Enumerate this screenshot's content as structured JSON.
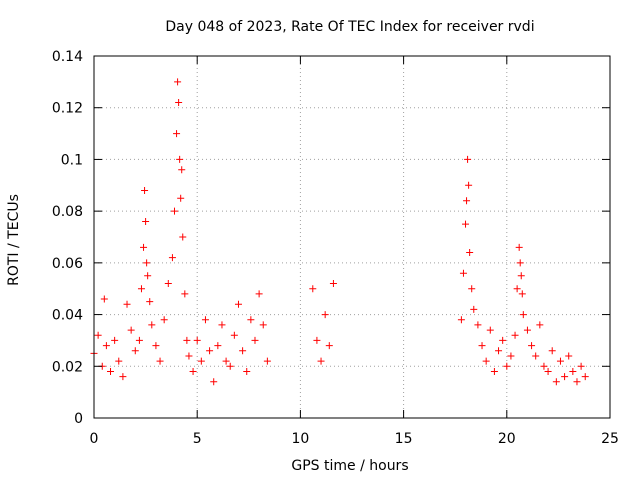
{
  "chart_data": {
    "type": "scatter",
    "title": "Day 048 of 2023, Rate Of TEC Index for receiver rvdi",
    "xlabel": "GPS time / hours",
    "ylabel": "ROTI / TECUs",
    "xlim": [
      0,
      25
    ],
    "ylim": [
      0,
      0.14
    ],
    "xticks": [
      0,
      5,
      10,
      15,
      20,
      25
    ],
    "xtick_labels": [
      "0",
      "5",
      "10",
      "15",
      "20",
      "25"
    ],
    "yticks": [
      0,
      0.02,
      0.04,
      0.06,
      0.08,
      0.1,
      0.12,
      0.14
    ],
    "ytick_labels": [
      "0",
      "0.02",
      "0.04",
      "0.06",
      "0.08",
      "0.1",
      "0.12",
      "0.14"
    ],
    "grid": true,
    "marker": "+",
    "colors": {
      "series": "#ff0000",
      "grid": "#a0a0a0",
      "axes": "#000000"
    },
    "series": [
      {
        "name": "ROTI",
        "x": [
          0.0,
          0.2,
          0.4,
          0.5,
          0.6,
          0.8,
          1.0,
          1.2,
          1.4,
          1.6,
          1.8,
          2.0,
          2.2,
          2.3,
          2.4,
          2.45,
          2.5,
          2.55,
          2.6,
          2.7,
          2.8,
          3.0,
          3.2,
          3.4,
          3.6,
          3.8,
          3.9,
          4.0,
          4.05,
          4.1,
          4.15,
          4.2,
          4.25,
          4.3,
          4.4,
          4.5,
          4.6,
          4.8,
          5.0,
          5.2,
          5.4,
          5.6,
          5.8,
          6.0,
          6.2,
          6.4,
          6.6,
          6.8,
          7.0,
          7.2,
          7.4,
          7.6,
          7.8,
          8.0,
          8.2,
          8.4,
          10.6,
          10.8,
          11.0,
          11.2,
          11.4,
          11.6,
          17.8,
          17.9,
          18.0,
          18.05,
          18.1,
          18.15,
          18.2,
          18.3,
          18.4,
          18.6,
          18.8,
          19.0,
          19.2,
          19.4,
          19.6,
          19.8,
          20.0,
          20.2,
          20.4,
          20.5,
          20.6,
          20.65,
          20.7,
          20.75,
          20.8,
          21.0,
          21.2,
          21.4,
          21.6,
          21.8,
          22.0,
          22.2,
          22.4,
          22.6,
          22.8,
          23.0,
          23.2,
          23.4,
          23.6,
          23.8
        ],
        "y": [
          0.025,
          0.032,
          0.02,
          0.046,
          0.028,
          0.018,
          0.03,
          0.022,
          0.016,
          0.044,
          0.034,
          0.026,
          0.03,
          0.05,
          0.066,
          0.088,
          0.076,
          0.06,
          0.055,
          0.045,
          0.036,
          0.028,
          0.022,
          0.038,
          0.052,
          0.062,
          0.08,
          0.11,
          0.13,
          0.122,
          0.1,
          0.085,
          0.096,
          0.07,
          0.048,
          0.03,
          0.024,
          0.018,
          0.03,
          0.022,
          0.038,
          0.026,
          0.014,
          0.028,
          0.036,
          0.022,
          0.02,
          0.032,
          0.044,
          0.026,
          0.018,
          0.038,
          0.03,
          0.048,
          0.036,
          0.022,
          0.05,
          0.03,
          0.022,
          0.04,
          0.028,
          0.052,
          0.038,
          0.056,
          0.075,
          0.084,
          0.1,
          0.09,
          0.064,
          0.05,
          0.042,
          0.036,
          0.028,
          0.022,
          0.034,
          0.018,
          0.026,
          0.03,
          0.02,
          0.024,
          0.032,
          0.05,
          0.066,
          0.06,
          0.055,
          0.048,
          0.04,
          0.034,
          0.028,
          0.024,
          0.036,
          0.02,
          0.018,
          0.026,
          0.014,
          0.022,
          0.016,
          0.024,
          0.018,
          0.014,
          0.02,
          0.016
        ]
      }
    ]
  }
}
